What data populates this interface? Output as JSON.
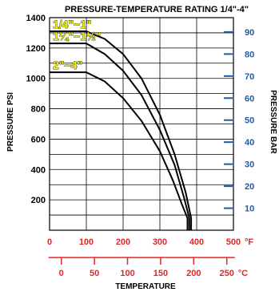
{
  "chart_data": {
    "type": "line",
    "title": "PRESSURE-TEMPERATURE RATING 1/4\"-4\"",
    "ylabel": "PRESSURE PSI",
    "ylabel_right": "PRESSURE BAR",
    "xlabel": "TEMPERATURE",
    "x_unit_f": "°F",
    "x_unit_c": "°C",
    "xlim_f": [
      0,
      500
    ],
    "ylim_psi": [
      0,
      1400
    ],
    "y_ticks_psi": [
      "200",
      "400",
      "600",
      "800",
      "1000",
      "1200",
      "1400"
    ],
    "y_tick_values_psi": [
      200,
      400,
      600,
      800,
      1000,
      1200,
      1400
    ],
    "x_ticks_f": [
      "0",
      "100",
      "200",
      "300",
      "400",
      "500"
    ],
    "x_tick_values_f": [
      0,
      100,
      200,
      300,
      400,
      500
    ],
    "x_ticks_c": [
      "0",
      "50",
      "100",
      "150",
      "200",
      "250"
    ],
    "x_tick_values_c": [
      0,
      50,
      100,
      150,
      200,
      250
    ],
    "y_ticks_bar": [
      "10",
      "20",
      "30",
      "40",
      "50",
      "60",
      "70",
      "80",
      "90"
    ],
    "y_tick_values_bar": [
      10,
      20,
      30,
      40,
      50,
      60,
      70,
      80,
      90
    ],
    "grid": true,
    "series": [
      {
        "name": "1/4\"~1\"",
        "x": [
          0,
          100,
          150,
          200,
          250,
          300,
          340,
          370,
          385,
          385
        ],
        "y": [
          1310,
          1310,
          1260,
          1160,
          1000,
          760,
          500,
          250,
          80,
          0
        ]
      },
      {
        "name": "1¼\"~1½\"",
        "x": [
          0,
          100,
          150,
          200,
          250,
          300,
          340,
          365,
          380,
          380
        ],
        "y": [
          1230,
          1230,
          1160,
          1050,
          890,
          660,
          430,
          220,
          80,
          0
        ]
      },
      {
        "name": "2\"~4\"",
        "x": [
          0,
          100,
          150,
          200,
          250,
          300,
          335,
          360,
          375,
          375
        ],
        "y": [
          1040,
          1040,
          980,
          870,
          720,
          520,
          330,
          170,
          80,
          0
        ]
      }
    ],
    "labels_on_chart": [
      {
        "text": "1/4\"~1\"",
        "series": 0
      },
      {
        "text": "1¼\"~1½\"",
        "series": 1
      },
      {
        "text": "2\"~4\"",
        "series": 2
      }
    ]
  }
}
